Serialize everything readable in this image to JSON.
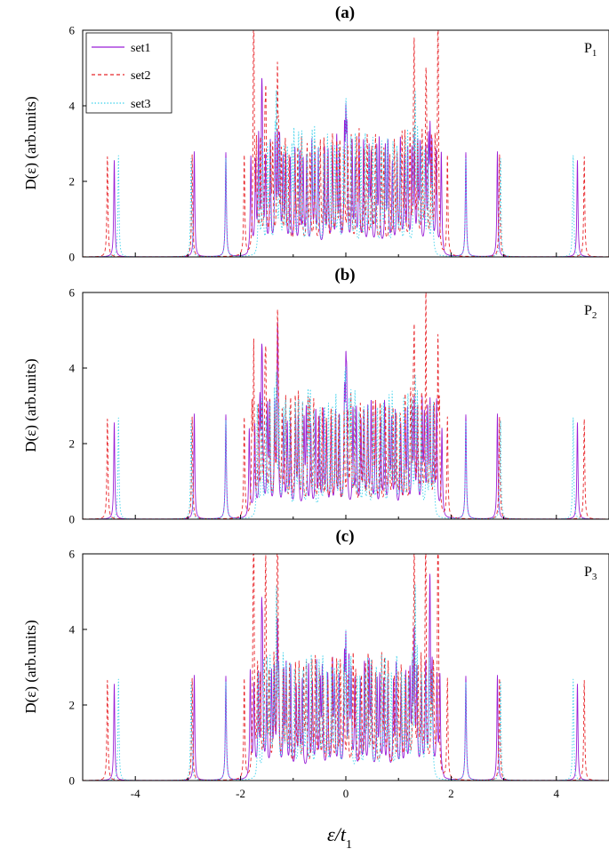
{
  "chart_data": {
    "type": "line",
    "panels": [
      {
        "title": "(a)",
        "tag": "P",
        "tag_sub": "1"
      },
      {
        "title": "(b)",
        "tag": "P",
        "tag_sub": "2"
      },
      {
        "title": "(c)",
        "tag": "P",
        "tag_sub": "3"
      }
    ],
    "xlabel": {
      "main": "ε/t",
      "sub": "1"
    },
    "ylabel": "D(ε) (arb.units)",
    "xlim": [
      -5,
      5
    ],
    "ylim": [
      0,
      6
    ],
    "xticks": [
      "-4",
      "-2",
      "0",
      "2",
      "4"
    ],
    "yticks": [
      "0",
      "2",
      "4",
      "6"
    ],
    "legend": {
      "placement": "top-left",
      "panel": "a"
    },
    "series": [
      {
        "name": "set1",
        "color": "#9a1fd6",
        "style": "solid",
        "isolated_peaks": [
          {
            "x": -4.4,
            "y": 2.55
          },
          {
            "x": -2.88,
            "y": 2.78
          },
          {
            "x": -2.28,
            "y": 2.75
          },
          {
            "x": 2.28,
            "y": 2.75
          },
          {
            "x": 2.88,
            "y": 2.78
          },
          {
            "x": 4.4,
            "y": 2.55
          }
        ],
        "band": {
          "x_range": [
            -1.85,
            1.85
          ],
          "peak_count": 48,
          "peak_height": 2.7,
          "floor": 0.15
        },
        "tall_peaks": [
          {
            "x": -1.6,
            "y": 3.3
          },
          {
            "x": -1.3,
            "y": 3.5
          },
          {
            "x": 0.0,
            "y": 3.1
          },
          {
            "x": 1.3,
            "y": 3.4
          },
          {
            "x": 1.6,
            "y": 3.3
          }
        ]
      },
      {
        "name": "set2",
        "color": "#e8262b",
        "style": "dashed",
        "isolated_peaks": [
          {
            "x": -4.53,
            "y": 2.65
          },
          {
            "x": -2.92,
            "y": 2.7
          },
          {
            "x": -1.93,
            "y": 2.65
          },
          {
            "x": 1.93,
            "y": 2.65
          },
          {
            "x": 2.92,
            "y": 2.7
          },
          {
            "x": 4.53,
            "y": 2.65
          }
        ],
        "band": {
          "x_range": [
            -1.8,
            1.8
          ],
          "peak_count": 46,
          "peak_height": 2.8,
          "floor": 0.2
        },
        "tall_peaks": [
          {
            "x": -1.75,
            "y": 5.8
          },
          {
            "x": -1.52,
            "y": 4.2
          },
          {
            "x": -1.3,
            "y": 5.4
          },
          {
            "x": 1.3,
            "y": 5.4
          },
          {
            "x": 1.52,
            "y": 4.2
          },
          {
            "x": 1.75,
            "y": 5.8
          }
        ]
      },
      {
        "name": "set3",
        "color": "#3fd2ec",
        "style": "dotted",
        "isolated_peaks": [
          {
            "x": -4.32,
            "y": 2.68
          },
          {
            "x": -2.94,
            "y": 2.6
          },
          {
            "x": -2.28,
            "y": 2.6
          },
          {
            "x": 2.28,
            "y": 2.6
          },
          {
            "x": 2.94,
            "y": 2.6
          },
          {
            "x": 4.32,
            "y": 2.68
          }
        ],
        "band": {
          "x_range": [
            -1.7,
            1.7
          ],
          "peak_count": 44,
          "peak_height": 2.9,
          "floor": 0.1
        },
        "tall_peaks": [
          {
            "x": -1.32,
            "y": 4.55
          },
          {
            "x": 0.0,
            "y": 3.45
          },
          {
            "x": 1.32,
            "y": 4.55
          }
        ]
      }
    ]
  }
}
